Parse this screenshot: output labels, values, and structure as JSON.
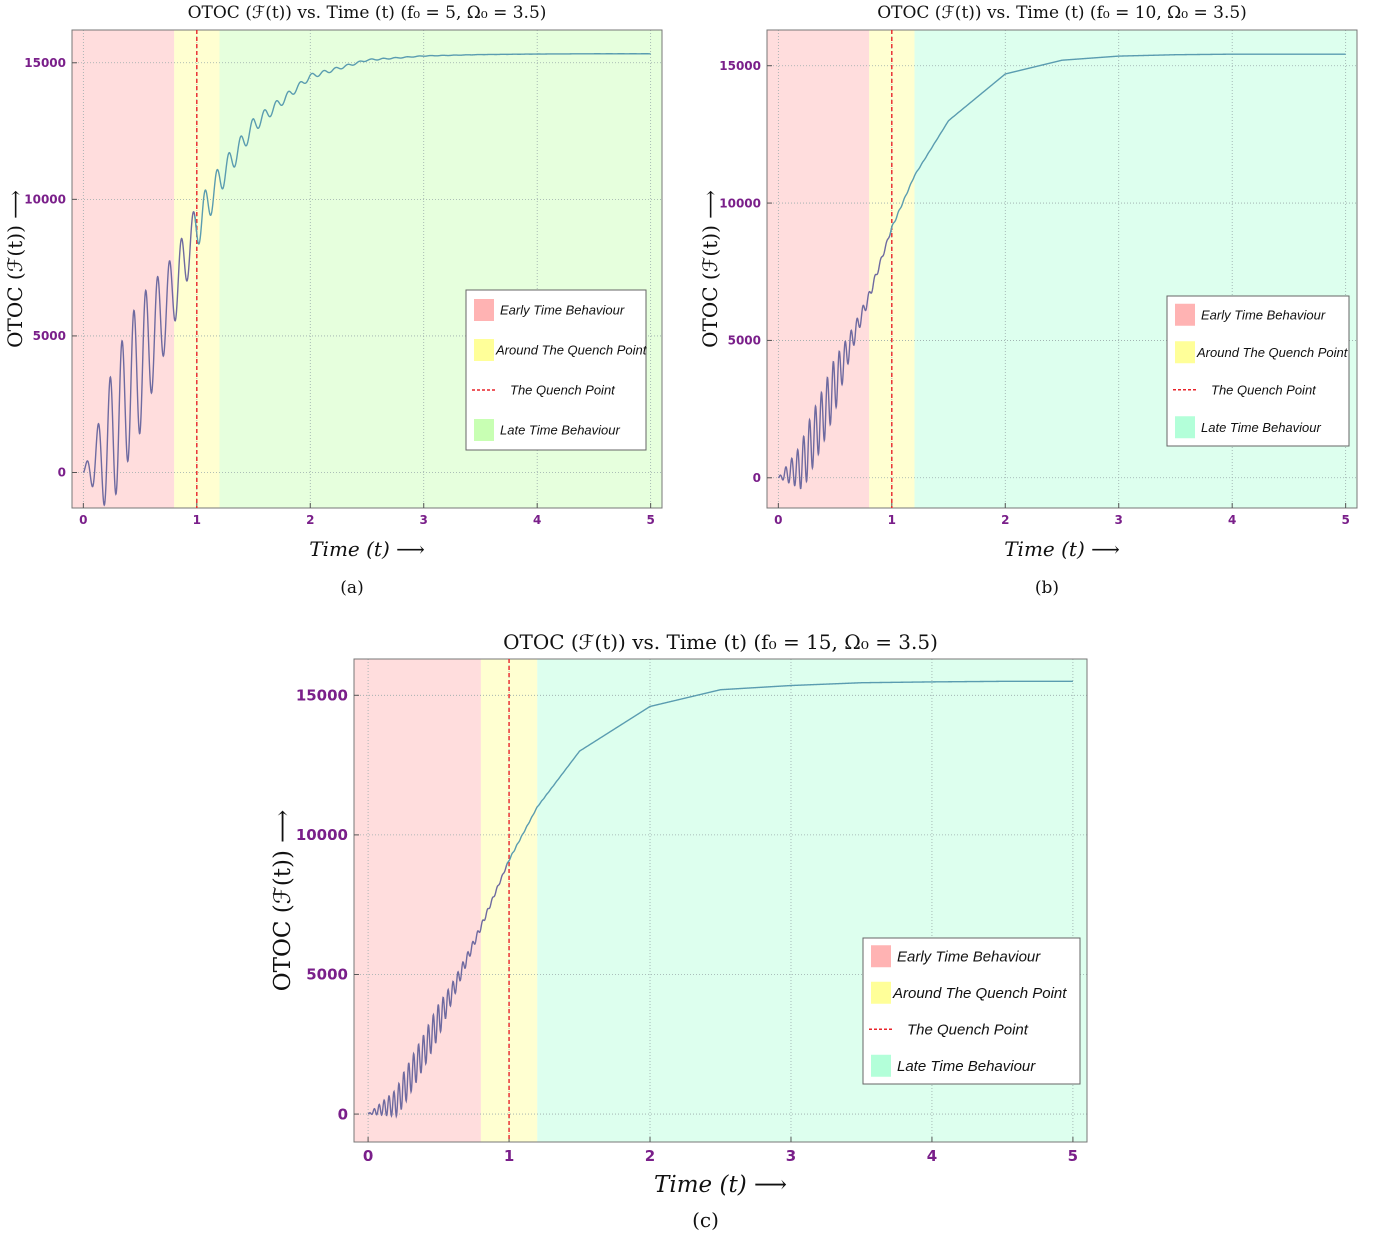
{
  "chart_data": [
    {
      "type": "line",
      "panel": "a",
      "f0": 5,
      "title": "OTOC (ℱ(t)) vs. Time (t) (f₀ = 5, Ω₀ = 3.5)",
      "xlabel": "Time (t) ⟶",
      "ylabel": "OTOC (ℱ(t)) ⟶",
      "caption": "(a)",
      "xlim": [
        -0.1,
        5.1
      ],
      "ylim": [
        -1300,
        16200
      ],
      "xticks": [
        "0",
        "1",
        "2",
        "3",
        "4",
        "5"
      ],
      "yticks": [
        "0",
        "5000",
        "10000",
        "15000"
      ],
      "grid": true,
      "legend_position": "right",
      "regions": [
        {
          "label": "Early Time Behaviour",
          "from": -0.1,
          "to": 0.8,
          "color": "#ffb3b3"
        },
        {
          "label": "Around The Quench Point",
          "from": 0.8,
          "to": 1.2,
          "color": "#ffff99"
        },
        {
          "label": "Late Time Behaviour",
          "from": 1.2,
          "to": 5.1,
          "color": "#c8ffb3"
        }
      ],
      "quench_line": {
        "label": "The Quench Point",
        "x": 1,
        "color": "#e8232a"
      },
      "legend": [
        "Early Time Behaviour",
        "Around The Quench Point",
        "The Quench Point",
        "Late Time Behaviour"
      ],
      "series": [
        {
          "x": [
            0,
            0.2,
            0.4,
            0.6,
            0.8,
            1.0,
            1.2,
            1.5,
            2.0,
            2.5,
            3.0,
            3.5,
            4.0,
            4.5,
            5.0
          ],
          "values": [
            0,
            700,
            3000,
            4900,
            6700,
            9000,
            10700,
            12700,
            14500,
            15100,
            15250,
            15300,
            15320,
            15330,
            15330
          ],
          "oscillation_amplitude": 2500,
          "color_early": "#6e6aa0",
          "color_late": "#5a9cb0"
        }
      ]
    },
    {
      "type": "line",
      "panel": "b",
      "f0": 10,
      "title": "OTOC (ℱ(t)) vs. Time (t) (f₀ = 10, Ω₀ = 3.5)",
      "xlabel": "Time (t) ⟶",
      "ylabel": "OTOC (ℱ(t)) ⟶",
      "caption": "(b)",
      "xlim": [
        -0.1,
        5.1
      ],
      "ylim": [
        -1100,
        16300
      ],
      "xticks": [
        "0",
        "1",
        "2",
        "3",
        "4",
        "5"
      ],
      "yticks": [
        "0",
        "5000",
        "10000",
        "15000"
      ],
      "grid": true,
      "legend_position": "right",
      "regions": [
        {
          "label": "Early Time Behaviour",
          "from": -0.1,
          "to": 0.8,
          "color": "#ffb3b3"
        },
        {
          "label": "Around The Quench Point",
          "from": 0.8,
          "to": 1.2,
          "color": "#ffff99"
        },
        {
          "label": "Late Time Behaviour",
          "from": 1.2,
          "to": 5.1,
          "color": "#b3ffd9"
        }
      ],
      "quench_line": {
        "label": "The Quench Point",
        "x": 1,
        "color": "#e8232a"
      },
      "legend": [
        "Early Time Behaviour",
        "Around The Quench Point",
        "The Quench Point",
        "Late Time Behaviour"
      ],
      "series": [
        {
          "x": [
            0,
            0.2,
            0.4,
            0.6,
            0.8,
            1.0,
            1.2,
            1.5,
            2.0,
            2.5,
            3.0,
            3.5,
            4.0,
            4.5,
            5.0
          ],
          "values": [
            0,
            400,
            2300,
            4500,
            6600,
            9100,
            11000,
            13000,
            14700,
            15200,
            15350,
            15400,
            15420,
            15420,
            15420
          ],
          "oscillation_amplitude": 1000,
          "color_early": "#6e6aa0",
          "color_late": "#5a9cb0"
        }
      ]
    },
    {
      "type": "line",
      "panel": "c",
      "f0": 15,
      "title": "OTOC (ℱ(t)) vs. Time (t) (f₀ = 15, Ω₀ = 3.5)",
      "xlabel": "Time (t) ⟶",
      "ylabel": "OTOC (ℱ(t)) ⟶",
      "caption": "(c)",
      "xlim": [
        -0.1,
        5.1
      ],
      "ylim": [
        -1000,
        16300
      ],
      "xticks": [
        "0",
        "1",
        "2",
        "3",
        "4",
        "5"
      ],
      "yticks": [
        "0",
        "5000",
        "10000",
        "15000"
      ],
      "grid": true,
      "legend_position": "right",
      "regions": [
        {
          "label": "Early Time Behaviour",
          "from": -0.1,
          "to": 0.8,
          "color": "#ffb3b3"
        },
        {
          "label": "Around The Quench Point",
          "from": 0.8,
          "to": 1.2,
          "color": "#ffff99"
        },
        {
          "label": "Late Time Behaviour",
          "from": 1.2,
          "to": 5.1,
          "color": "#b3ffd9"
        }
      ],
      "quench_line": {
        "label": "The Quench Point",
        "x": 1,
        "color": "#e8232a"
      },
      "legend": [
        "Early Time Behaviour",
        "Around The Quench Point",
        "The Quench Point",
        "Late Time Behaviour"
      ],
      "series": [
        {
          "x": [
            0,
            0.2,
            0.4,
            0.6,
            0.8,
            1.0,
            1.2,
            1.5,
            2.0,
            2.5,
            3.0,
            3.5,
            4.0,
            4.5,
            5.0
          ],
          "values": [
            0,
            400,
            2300,
            4400,
            6700,
            9100,
            11000,
            13000,
            14600,
            15200,
            15350,
            15450,
            15480,
            15500,
            15500
          ],
          "oscillation_amplitude": 600,
          "color_early": "#6e6aa0",
          "color_late": "#5a9cb0"
        }
      ]
    }
  ]
}
